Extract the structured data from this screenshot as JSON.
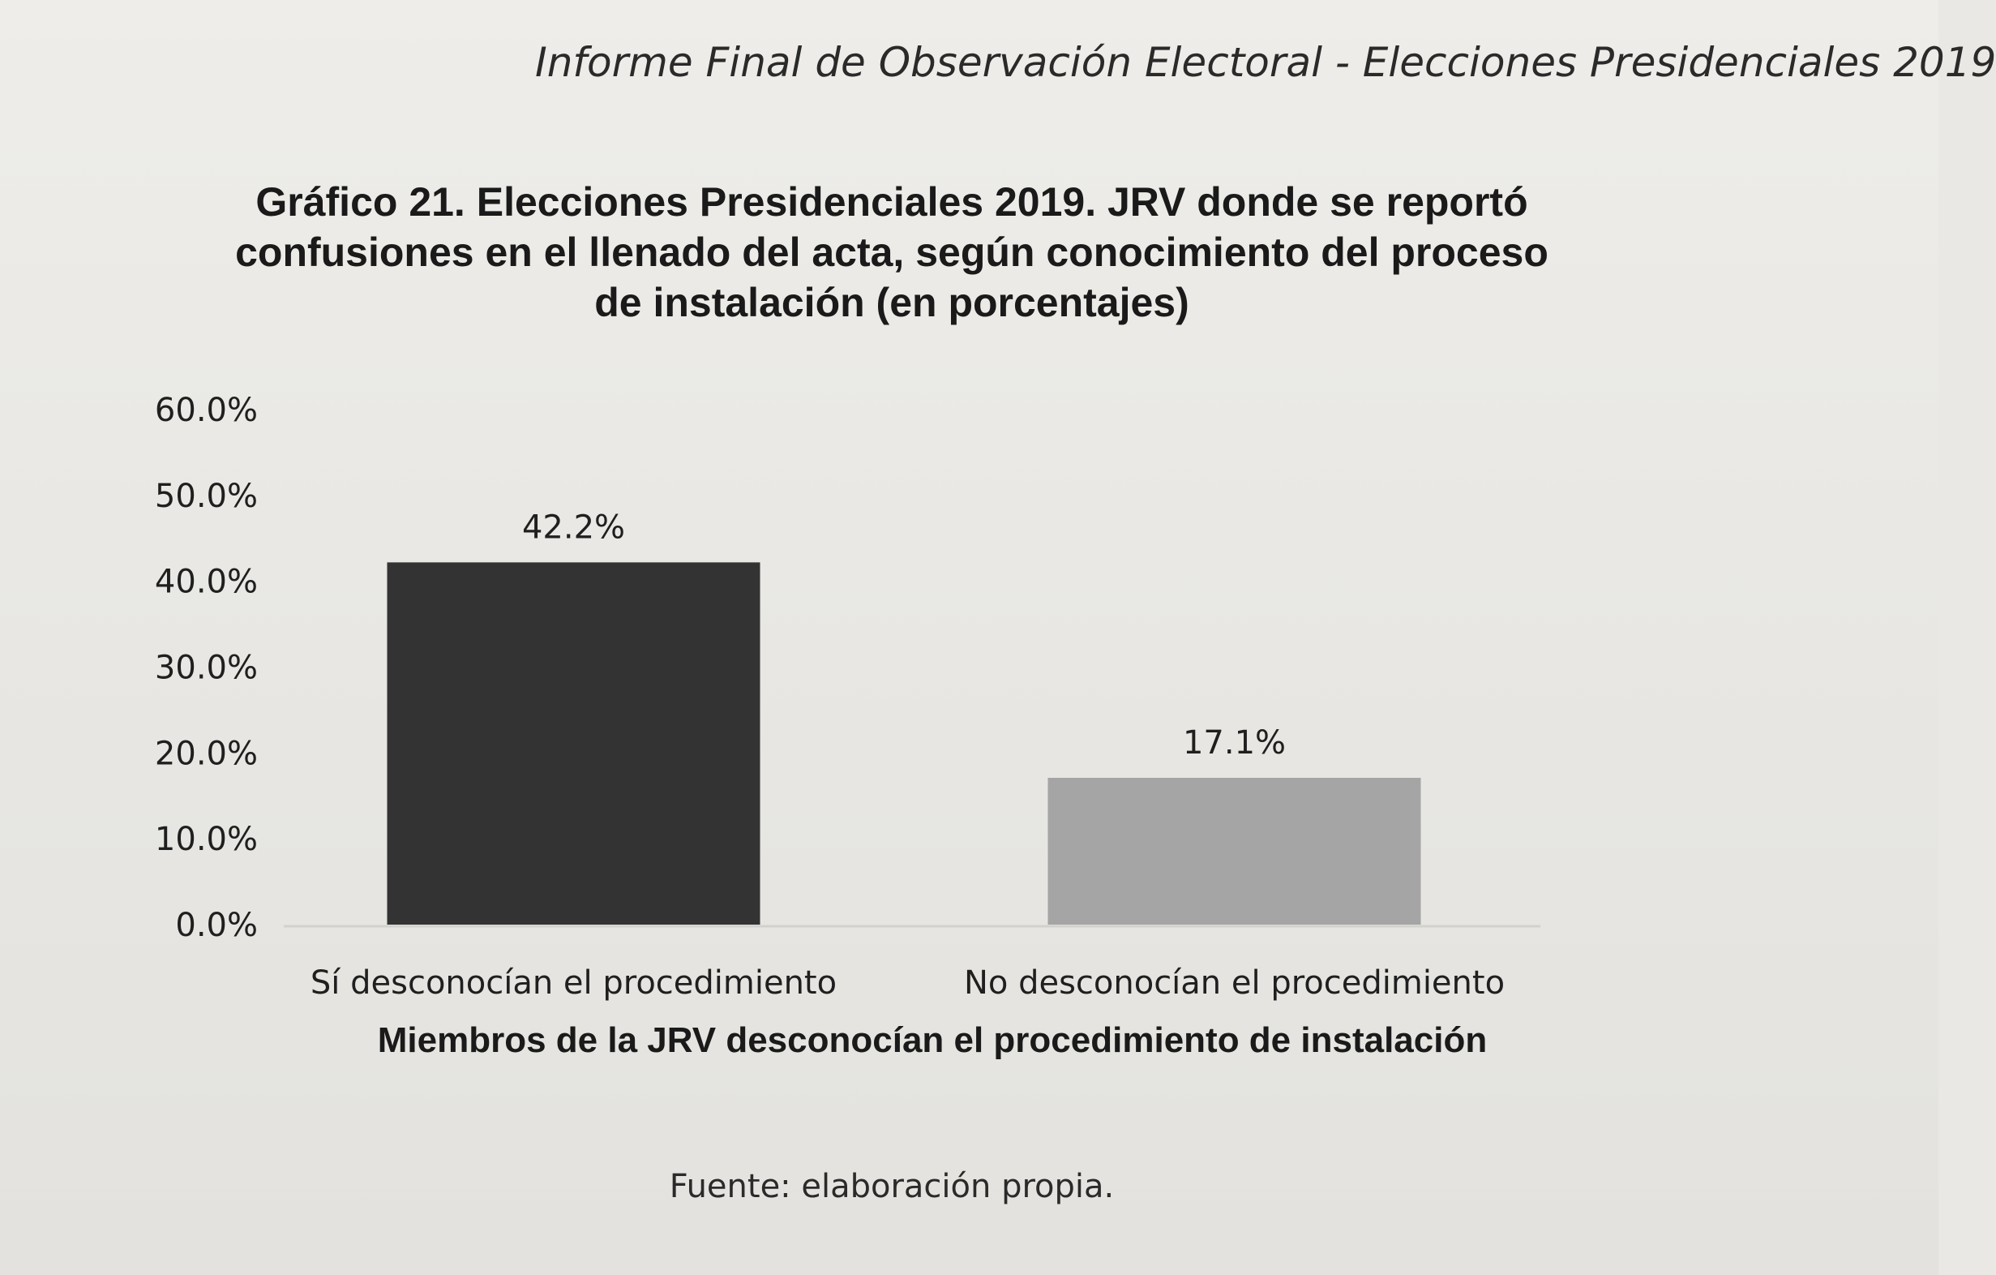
{
  "header": {
    "running_title": "Informe Final de Observación Electoral - Elecciones Presidenciales 2019"
  },
  "chart_data": {
    "type": "bar",
    "title_lines": [
      "Gráfico 21. Elecciones Presidenciales 2019. JRV donde se reportó",
      "confusiones en el llenado del acta, según conocimiento del proceso",
      "de instalación (en porcentajes)"
    ],
    "categories": [
      "Sí desconocían el procedimiento",
      "No desconocían el procedimiento"
    ],
    "values": [
      42.2,
      17.1
    ],
    "data_labels": [
      "42.2%",
      "17.1%"
    ],
    "colors": [
      "#333333",
      "#a5a5a5"
    ],
    "xlabel": "Miembros de la JRV desconocían el procedimiento de instalación",
    "ylabel": "",
    "ylim": [
      0,
      60
    ],
    "yticks": [
      0,
      10,
      20,
      30,
      40,
      50,
      60
    ],
    "ytick_labels": [
      "0.0%",
      "10.0%",
      "20.0%",
      "30.0%",
      "40.0%",
      "50.0%",
      "60.0%"
    ],
    "grid": false,
    "legend": "none"
  },
  "footer": {
    "source": "Fuente: elaboración propia."
  }
}
